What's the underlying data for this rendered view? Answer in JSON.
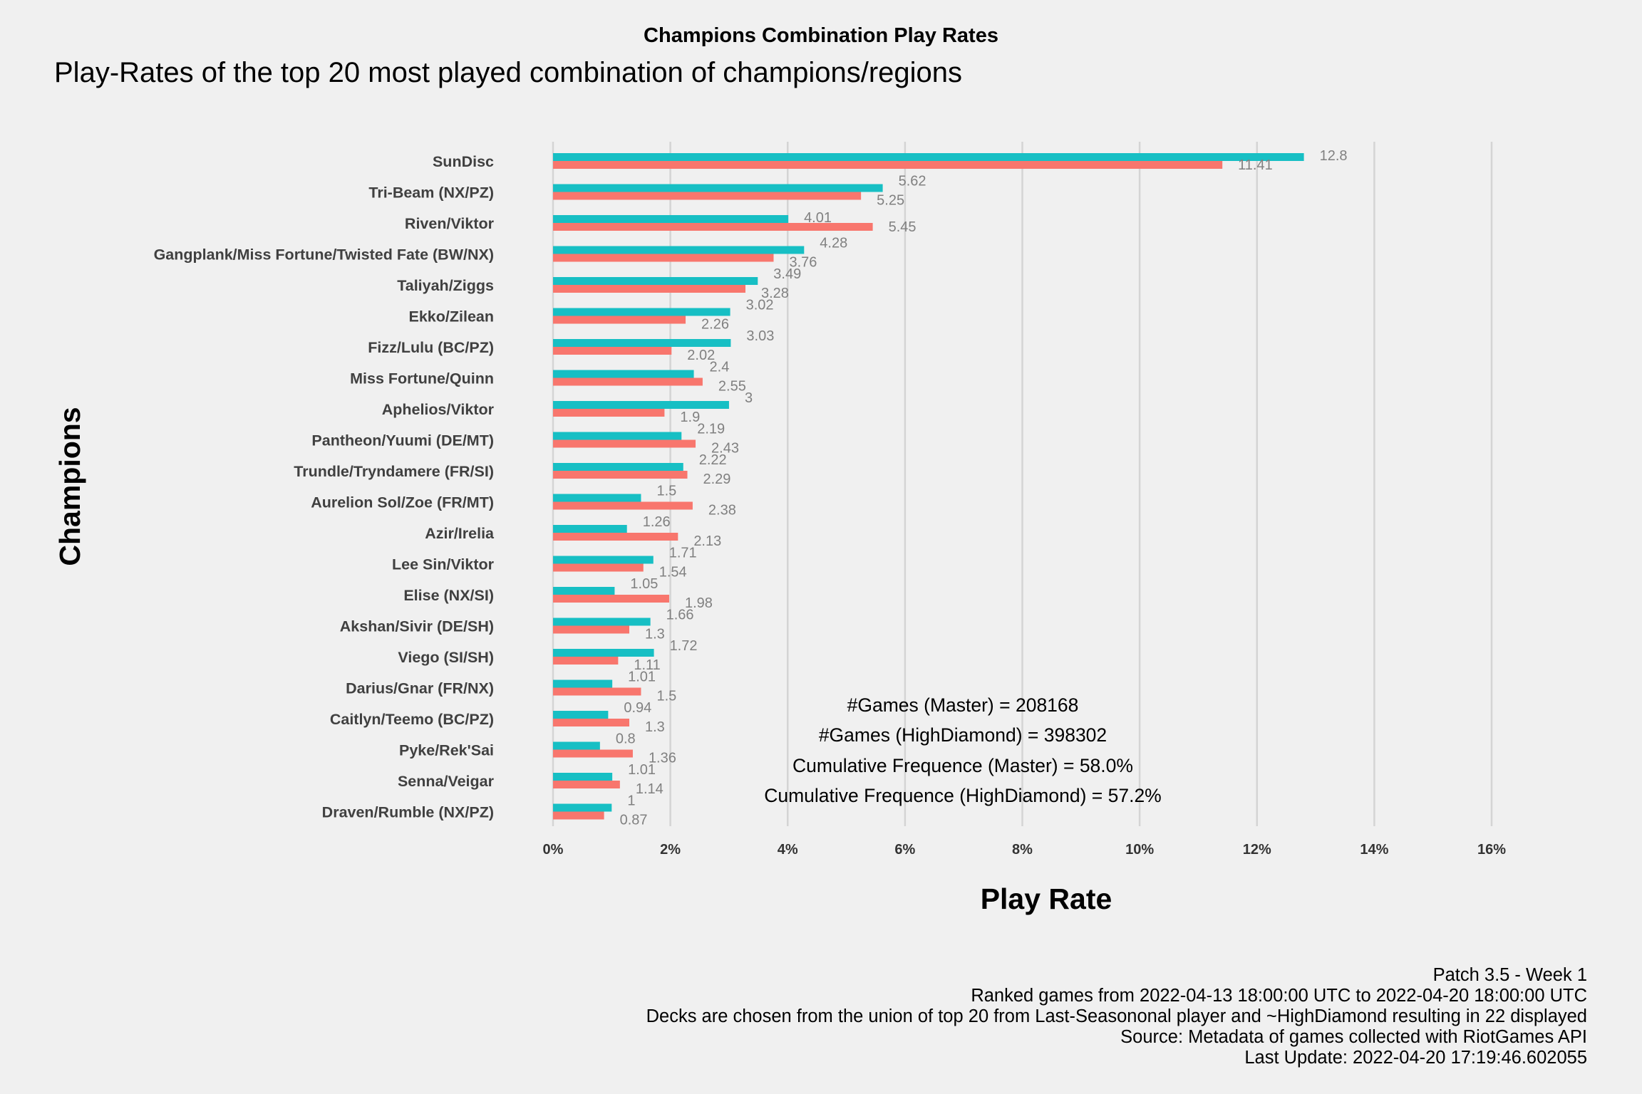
{
  "chart_data": {
    "type": "bar",
    "orientation": "horizontal",
    "title": "Champions Combination Play Rates",
    "subtitle": "Play-Rates of the top 20 most played combination of champions/regions",
    "xlabel": "Play Rate",
    "ylabel": "Champions",
    "xlim": [
      0,
      16
    ],
    "x_ticks": [
      "0%",
      "2%",
      "4%",
      "6%",
      "8%",
      "10%",
      "12%",
      "14%",
      "16%"
    ],
    "grid": "vertical",
    "categories": [
      "SunDisc",
      "Tri-Beam (NX/PZ)",
      "Riven/Viktor",
      "Gangplank/Miss Fortune/Twisted Fate (BW/NX)",
      "Taliyah/Ziggs",
      "Ekko/Zilean",
      "Fizz/Lulu (BC/PZ)",
      "Miss Fortune/Quinn",
      "Aphelios/Viktor",
      "Pantheon/Yuumi (DE/MT)",
      "Trundle/Tryndamere (FR/SI)",
      "Aurelion Sol/Zoe (FR/MT)",
      "Azir/Irelia",
      "Lee Sin/Viktor",
      "Elise (NX/SI)",
      "Akshan/Sivir (DE/SH)",
      "Viego (SI/SH)",
      "Darius/Gnar (FR/NX)",
      "Caitlyn/Teemo (BC/PZ)",
      "Pyke/Rek'Sai",
      "Senna/Veigar",
      "Draven/Rumble (NX/PZ)"
    ],
    "series": [
      {
        "color": "#17bfc4",
        "values": [
          12.8,
          5.62,
          4.01,
          4.28,
          3.49,
          3.02,
          3.03,
          2.4,
          3,
          2.19,
          2.22,
          1.5,
          1.26,
          1.71,
          1.05,
          1.66,
          1.72,
          1.01,
          0.94,
          0.8,
          1.01,
          1
        ],
        "labels": [
          "12.8",
          "5.62",
          "4.01",
          "4.28",
          "3.49",
          "3.02",
          "3.03",
          "2.4",
          "3",
          "2.19",
          "2.22",
          "1.5",
          "1.26",
          "1.71",
          "1.05",
          "1.66",
          "1.72",
          "1.01",
          "0.94",
          "0.8",
          "1.01",
          "1"
        ]
      },
      {
        "color": "#f8766d",
        "values": [
          11.41,
          5.25,
          5.45,
          3.76,
          3.28,
          2.26,
          2.02,
          2.55,
          1.9,
          2.43,
          2.29,
          2.38,
          2.13,
          1.54,
          1.98,
          1.3,
          1.11,
          1.5,
          1.3,
          1.36,
          1.14,
          0.87
        ],
        "labels": [
          "11.41",
          "5.25",
          "5.45",
          "3.76",
          "3.28",
          "2.26",
          "2.02",
          "2.55",
          "1.9",
          "2.43",
          "2.29",
          "2.38",
          "2.13",
          "1.54",
          "1.98",
          "1.3",
          "1.11",
          "1.5",
          "1.3",
          "1.36",
          "1.14",
          "0.87"
        ]
      }
    ],
    "annotations": [
      "#Games (Master) = 208168",
      "#Games (HighDiamond) = 398302",
      "Cumulative Frequence (Master) = 58.0%",
      "Cumulative Frequence (HighDiamond) = 57.2%"
    ]
  },
  "caption": {
    "lines": [
      "Patch 3.5 - Week 1",
      "Ranked games from 2022-04-13 18:00:00 UTC to 2022-04-20 18:00:00 UTC",
      "Decks are chosen from the union of top 20 from Last-Seasononal player and ~HighDiamond resulting in 22 displayed",
      "Source: Metadata of games collected with RiotGames API",
      "Last Update: 2022-04-20 17:19:46.602055"
    ]
  }
}
